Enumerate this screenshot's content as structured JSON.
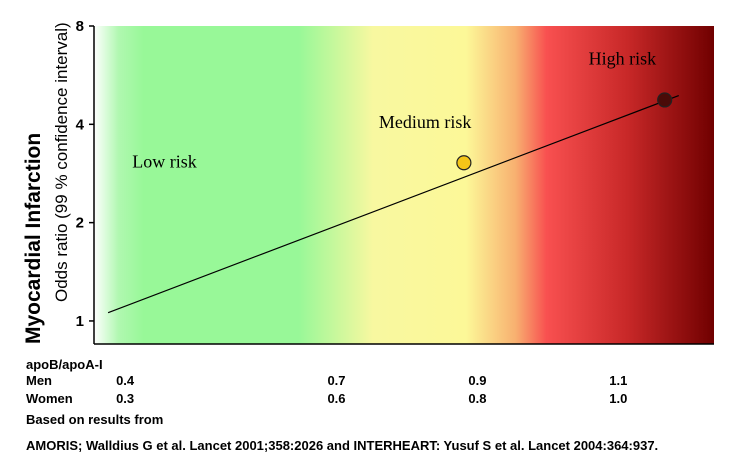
{
  "chart_data": {
    "type": "line",
    "ylabel_main": "Myocardial Infarction",
    "ylabel_sub": "Odds ratio (99 % confidence interval)",
    "y_scale": "log2",
    "ylim": [
      0.85,
      8
    ],
    "y_ticks": [
      1,
      2,
      4,
      8
    ],
    "y_tick_labels": [
      "1",
      "2",
      "4",
      "8"
    ],
    "xlim": [
      0.28,
      1.16
    ],
    "x_domain_note": "",
    "zones": [
      {
        "label": "Low risk",
        "x_label": 0.38,
        "y_label": 2.95
      },
      {
        "label": "Medium risk",
        "x_label": 0.75,
        "y_label": 3.9
      },
      {
        "label": "High risk",
        "x_label": 1.03,
        "y_label": 6.1
      }
    ],
    "series": [
      {
        "line_x": [
          0.3,
          1.11
        ],
        "line_y": [
          1.06,
          4.9
        ],
        "points": [
          {
            "x": 0.805,
            "y": 3.05,
            "color": "#f5c518"
          },
          {
            "x": 1.09,
            "y": 4.75,
            "color": "#4a0b08"
          }
        ]
      }
    ],
    "colors": {
      "low": "#98f898",
      "medium": "#fcfc98",
      "high": "#f85050",
      "very_high": "#700000"
    }
  },
  "table": {
    "header": "apoB/apoA-I",
    "rows": [
      {
        "label": "Men",
        "values": [
          "0.4",
          "0.7",
          "0.9",
          "1.1"
        ]
      },
      {
        "label": "Women",
        "values": [
          "0.3",
          "0.6",
          "0.8",
          "1.0"
        ]
      }
    ],
    "value_x": [
      0.3,
      0.6,
      0.8,
      1.0
    ]
  },
  "footer": {
    "line1": "Based on results from",
    "line2": "AMORIS;   Walldius G et al.  Lancet 2001;358:2026 and INTERHEART:  Yusuf S et al.  Lancet 2004:364:937."
  }
}
